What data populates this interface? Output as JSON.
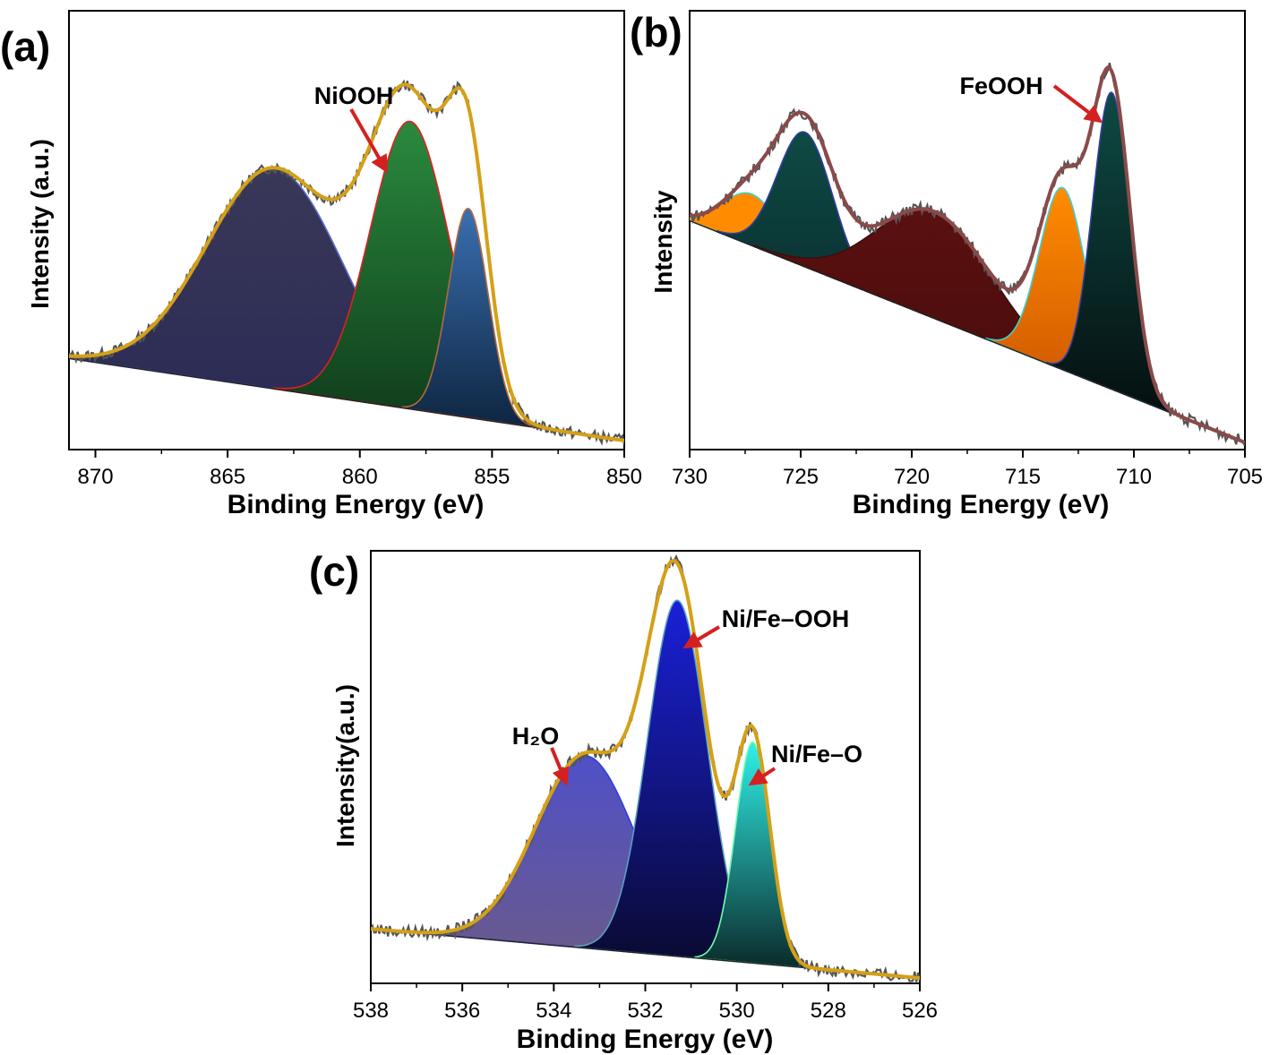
{
  "chart_data": [
    {
      "type": "area",
      "panel_label": "(a)",
      "xlabel": "Binding Energy (eV)",
      "ylabel": "Intensity (a.u.)",
      "x_reversed": true,
      "xlim": [
        871,
        850
      ],
      "x_ticks": [
        870,
        865,
        860,
        855,
        850
      ],
      "ylim": [
        0,
        1.0
      ],
      "background": {
        "x": [
          871,
          850
        ],
        "y": [
          0.22,
          0.0
        ]
      },
      "peaks": [
        {
          "center": 863.2,
          "height": 0.59,
          "sigma": 2.6,
          "fill_top": "#3a3858",
          "fill_bottom": "#2a2a55",
          "stroke": "#5a6fd0"
        },
        {
          "center": 858.1,
          "height": 0.77,
          "sigma": 1.5,
          "fill_top": "#2a8a3e",
          "fill_bottom": "#0f3a1a",
          "stroke": "#e02020"
        },
        {
          "center": 855.9,
          "height": 0.56,
          "sigma": 0.75,
          "fill_top": "#3a6fb0",
          "fill_bottom": "#0e2540",
          "stroke": "#b06a40"
        }
      ],
      "envelope_color": "#d4a017",
      "raw_color": "#555555",
      "annotations": [
        {
          "text": "NiOOH",
          "x": 858.5,
          "y": 0.95
        }
      ]
    },
    {
      "type": "area",
      "panel_label": "(b)",
      "xlabel": "Binding Energy (eV)",
      "ylabel": "Intensity",
      "x_reversed": true,
      "xlim": [
        730,
        705
      ],
      "x_ticks": [
        730,
        725,
        720,
        715,
        710,
        705
      ],
      "ylim": [
        0,
        1.0
      ],
      "background": {
        "x": [
          730,
          705
        ],
        "y": [
          0.56,
          0.0
        ]
      },
      "peaks": [
        {
          "center": 727.2,
          "height": 0.13,
          "sigma": 1.3,
          "fill_top": "#ff8c00",
          "fill_bottom": "#ff8c00",
          "stroke": "#40d0d0"
        },
        {
          "center": 724.8,
          "height": 0.34,
          "sigma": 1.25,
          "fill_top": "#0e4a44",
          "fill_bottom": "#0a3030",
          "stroke": "#3040a0"
        },
        {
          "center": 719.0,
          "height": 0.27,
          "sigma": 2.6,
          "fill_top": "#5a1010",
          "fill_bottom": "#4a0c0c",
          "stroke": "#3a1010"
        },
        {
          "center": 713.2,
          "height": 0.46,
          "sigma": 1.05,
          "fill_top": "#ff8c00",
          "fill_bottom": "#cc5500",
          "stroke": "#40d0d0"
        },
        {
          "center": 711.0,
          "height": 0.75,
          "sigma": 0.85,
          "fill_top": "#0e4a44",
          "fill_bottom": "#050f0f",
          "stroke": "#3040a0"
        }
      ],
      "envelope_color": "#8a4a4a",
      "raw_color": "#555555",
      "annotations": [
        {
          "text": "FeOOH",
          "x": 713.5,
          "y": 0.92
        }
      ]
    },
    {
      "type": "area",
      "panel_label": "(c)",
      "xlabel": "Binding Energy (eV)",
      "ylabel": "Intensity(a.u.)",
      "x_reversed": true,
      "xlim": [
        538,
        526
      ],
      "x_ticks": [
        538,
        536,
        534,
        532,
        530,
        528,
        526
      ],
      "ylim": [
        0,
        1.0
      ],
      "background": {
        "x": [
          538,
          526
        ],
        "y": [
          0.12,
          0.0
        ]
      },
      "peaks": [
        {
          "center": 533.3,
          "height": 0.47,
          "sigma": 1.1,
          "fill_top": "#5050c8",
          "fill_bottom": "#6a5a8a",
          "stroke": "#2a40e0"
        },
        {
          "center": 531.3,
          "height": 0.87,
          "sigma": 0.65,
          "fill_top": "#1a20d8",
          "fill_bottom": "#0a0a30",
          "stroke": "#5aa0c0"
        },
        {
          "center": 529.65,
          "height": 0.54,
          "sigma": 0.38,
          "fill_top": "#30f0e8",
          "fill_bottom": "#0a2a2a",
          "stroke": "#70ffb0"
        }
      ],
      "envelope_color": "#d4a017",
      "raw_color": "#555555",
      "annotations": [
        {
          "text": "H₂O",
          "x": 534.3,
          "y": 0.76
        },
        {
          "text": "Ni/Fe–OOH",
          "x": 530.4,
          "y": 1.0
        },
        {
          "text": "Ni/Fe–O",
          "x": 528.8,
          "y": 0.74
        }
      ]
    }
  ]
}
